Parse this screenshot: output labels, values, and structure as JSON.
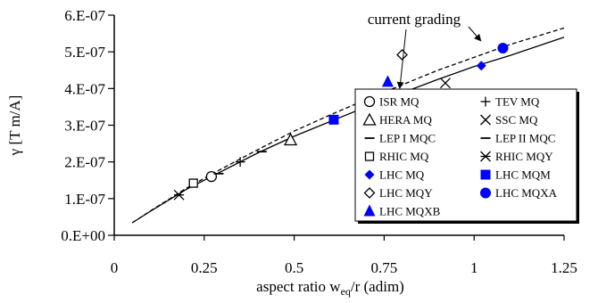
{
  "chart_data": {
    "type": "scatter",
    "title": "",
    "xlabel": "aspect ratio w",
    "xlabel_sub": "eq",
    "xlabel_tail": "/r (adim)",
    "ylabel": "γ [T m/A]",
    "xlim": [
      0,
      1.25
    ],
    "ylim": [
      0,
      6e-07
    ],
    "x_ticks": [
      0,
      0.25,
      0.5,
      0.75,
      1,
      1.25
    ],
    "x_tick_labels": [
      "0",
      "0.25",
      "0.5",
      "0.75",
      "1",
      "1.25"
    ],
    "y_ticks": [
      0,
      1e-07,
      2e-07,
      3e-07,
      4e-07,
      5e-07,
      6e-07
    ],
    "y_tick_labels": [
      "0.E+00",
      "1.E-07",
      "2.E-07",
      "3.E-07",
      "4.E-07",
      "5.E-07",
      "6.E-07"
    ],
    "grid": false,
    "legend_position": "right",
    "annotation": "current grading",
    "series": [
      {
        "name": "ISR MQ",
        "marker": "circle-open",
        "color": "#000000",
        "points": [
          [
            0.27,
            1.6e-07
          ]
        ]
      },
      {
        "name": "TEV MQ",
        "marker": "plus",
        "color": "#000000",
        "points": [
          [
            0.35,
            2e-07
          ]
        ]
      },
      {
        "name": "HERA MQ",
        "marker": "triangle-open",
        "color": "#000000",
        "points": [
          [
            0.49,
            2.6e-07
          ]
        ]
      },
      {
        "name": "SSC MQ",
        "marker": "x",
        "color": "#000000",
        "points": [
          [
            0.92,
            4.15e-07
          ]
        ]
      },
      {
        "name": "LEP I MQC",
        "marker": "dash",
        "color": "#000000",
        "points": [
          [
            0.29,
            1.68e-07
          ]
        ]
      },
      {
        "name": "LEP II MQC",
        "marker": "dash",
        "color": "#000000",
        "points": [
          [
            0.41,
            2.28e-07
          ]
        ]
      },
      {
        "name": "RHIC MQ",
        "marker": "square-open",
        "color": "#000000",
        "points": [
          [
            0.22,
            1.42e-07
          ]
        ]
      },
      {
        "name": "RHIC MQY",
        "marker": "asterisk",
        "color": "#000000",
        "points": [
          [
            0.18,
            1.1e-07
          ]
        ]
      },
      {
        "name": "LHC MQ",
        "marker": "diamond-filled",
        "color": "#0000ff",
        "points": [
          [
            1.02,
            4.62e-07
          ]
        ]
      },
      {
        "name": "LHC MQM",
        "marker": "square-filled",
        "color": "#0000ff",
        "points": [
          [
            0.61,
            3.15e-07
          ]
        ]
      },
      {
        "name": "LHC MQY",
        "marker": "diamond-open",
        "color": "#000000",
        "points": [
          [
            0.8,
            4.92e-07
          ]
        ]
      },
      {
        "name": "LHC MQXA",
        "marker": "circle-filled",
        "color": "#0000ff",
        "points": [
          [
            1.08,
            5.1e-07
          ]
        ]
      },
      {
        "name": "LHC MQXB",
        "marker": "triangle-filled",
        "color": "#0000ff",
        "points": [
          [
            0.76,
            4.18e-07
          ]
        ]
      }
    ],
    "fit_curves": [
      {
        "style": "solid",
        "color": "#000000",
        "x": [
          0.05,
          0.1,
          0.2,
          0.3,
          0.4,
          0.5,
          0.6,
          0.7,
          0.8,
          0.9,
          1.0,
          1.1,
          1.25
        ],
        "y": [
          3.4e-08,
          6.5e-08,
          1.25e-07,
          1.75e-07,
          2.25e-07,
          2.7e-07,
          3.1e-07,
          3.5e-07,
          3.88e-07,
          4.25e-07,
          4.6e-07,
          4.9e-07,
          5.4e-07
        ]
      },
      {
        "style": "dashed",
        "color": "#000000",
        "x": [
          0.05,
          0.1,
          0.2,
          0.3,
          0.4,
          0.5,
          0.6,
          0.7,
          0.8,
          0.9,
          1.0,
          1.1,
          1.25
        ],
        "y": [
          3.4e-08,
          6.6e-08,
          1.28e-07,
          1.82e-07,
          2.34e-07,
          2.84e-07,
          3.28e-07,
          3.7e-07,
          4.1e-07,
          4.5e-07,
          4.85e-07,
          5.2e-07,
          5.65e-07
        ]
      }
    ]
  }
}
